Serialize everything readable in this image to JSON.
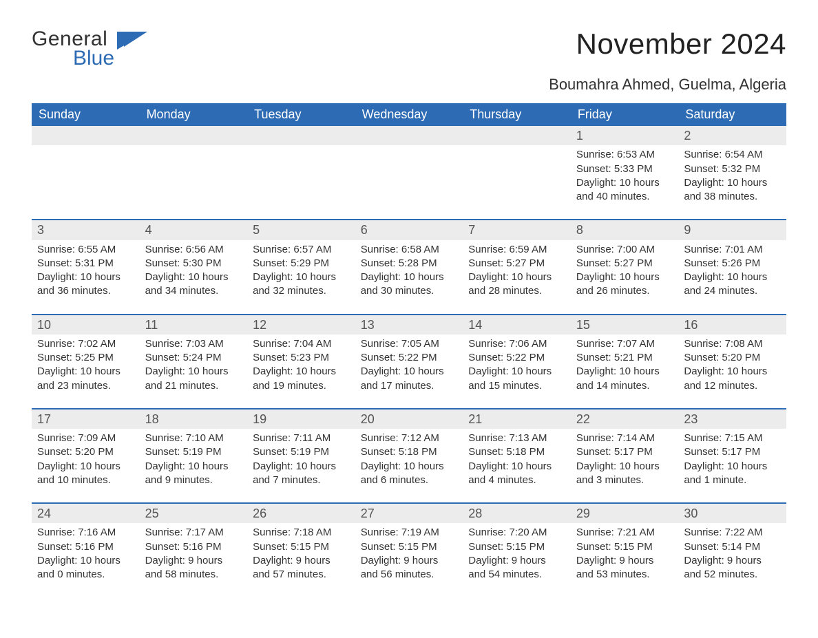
{
  "logo": {
    "word1": "General",
    "word2": "Blue",
    "color1": "#323232",
    "color2": "#2d6bb4"
  },
  "title": "November 2024",
  "location": "Boumahra Ahmed, Guelma, Algeria",
  "colors": {
    "header_bg": "#2d6bb4",
    "header_text": "#ffffff",
    "daynum_bg": "#ececec",
    "row_border": "#2d6bb4",
    "body_text": "#333333",
    "page_bg": "#ffffff"
  },
  "fonts": {
    "title_size": 42,
    "location_size": 22,
    "header_size": 18,
    "daynum_size": 18,
    "body_size": 15
  },
  "layout": {
    "columns": 7,
    "weeks": 5,
    "first_day_column": 5
  },
  "weekdays": [
    "Sunday",
    "Monday",
    "Tuesday",
    "Wednesday",
    "Thursday",
    "Friday",
    "Saturday"
  ],
  "weeks": [
    [
      null,
      null,
      null,
      null,
      null,
      {
        "day": "1",
        "sunrise": "Sunrise: 6:53 AM",
        "sunset": "Sunset: 5:33 PM",
        "daylight1": "Daylight: 10 hours",
        "daylight2": "and 40 minutes."
      },
      {
        "day": "2",
        "sunrise": "Sunrise: 6:54 AM",
        "sunset": "Sunset: 5:32 PM",
        "daylight1": "Daylight: 10 hours",
        "daylight2": "and 38 minutes."
      }
    ],
    [
      {
        "day": "3",
        "sunrise": "Sunrise: 6:55 AM",
        "sunset": "Sunset: 5:31 PM",
        "daylight1": "Daylight: 10 hours",
        "daylight2": "and 36 minutes."
      },
      {
        "day": "4",
        "sunrise": "Sunrise: 6:56 AM",
        "sunset": "Sunset: 5:30 PM",
        "daylight1": "Daylight: 10 hours",
        "daylight2": "and 34 minutes."
      },
      {
        "day": "5",
        "sunrise": "Sunrise: 6:57 AM",
        "sunset": "Sunset: 5:29 PM",
        "daylight1": "Daylight: 10 hours",
        "daylight2": "and 32 minutes."
      },
      {
        "day": "6",
        "sunrise": "Sunrise: 6:58 AM",
        "sunset": "Sunset: 5:28 PM",
        "daylight1": "Daylight: 10 hours",
        "daylight2": "and 30 minutes."
      },
      {
        "day": "7",
        "sunrise": "Sunrise: 6:59 AM",
        "sunset": "Sunset: 5:27 PM",
        "daylight1": "Daylight: 10 hours",
        "daylight2": "and 28 minutes."
      },
      {
        "day": "8",
        "sunrise": "Sunrise: 7:00 AM",
        "sunset": "Sunset: 5:27 PM",
        "daylight1": "Daylight: 10 hours",
        "daylight2": "and 26 minutes."
      },
      {
        "day": "9",
        "sunrise": "Sunrise: 7:01 AM",
        "sunset": "Sunset: 5:26 PM",
        "daylight1": "Daylight: 10 hours",
        "daylight2": "and 24 minutes."
      }
    ],
    [
      {
        "day": "10",
        "sunrise": "Sunrise: 7:02 AM",
        "sunset": "Sunset: 5:25 PM",
        "daylight1": "Daylight: 10 hours",
        "daylight2": "and 23 minutes."
      },
      {
        "day": "11",
        "sunrise": "Sunrise: 7:03 AM",
        "sunset": "Sunset: 5:24 PM",
        "daylight1": "Daylight: 10 hours",
        "daylight2": "and 21 minutes."
      },
      {
        "day": "12",
        "sunrise": "Sunrise: 7:04 AM",
        "sunset": "Sunset: 5:23 PM",
        "daylight1": "Daylight: 10 hours",
        "daylight2": "and 19 minutes."
      },
      {
        "day": "13",
        "sunrise": "Sunrise: 7:05 AM",
        "sunset": "Sunset: 5:22 PM",
        "daylight1": "Daylight: 10 hours",
        "daylight2": "and 17 minutes."
      },
      {
        "day": "14",
        "sunrise": "Sunrise: 7:06 AM",
        "sunset": "Sunset: 5:22 PM",
        "daylight1": "Daylight: 10 hours",
        "daylight2": "and 15 minutes."
      },
      {
        "day": "15",
        "sunrise": "Sunrise: 7:07 AM",
        "sunset": "Sunset: 5:21 PM",
        "daylight1": "Daylight: 10 hours",
        "daylight2": "and 14 minutes."
      },
      {
        "day": "16",
        "sunrise": "Sunrise: 7:08 AM",
        "sunset": "Sunset: 5:20 PM",
        "daylight1": "Daylight: 10 hours",
        "daylight2": "and 12 minutes."
      }
    ],
    [
      {
        "day": "17",
        "sunrise": "Sunrise: 7:09 AM",
        "sunset": "Sunset: 5:20 PM",
        "daylight1": "Daylight: 10 hours",
        "daylight2": "and 10 minutes."
      },
      {
        "day": "18",
        "sunrise": "Sunrise: 7:10 AM",
        "sunset": "Sunset: 5:19 PM",
        "daylight1": "Daylight: 10 hours",
        "daylight2": "and 9 minutes."
      },
      {
        "day": "19",
        "sunrise": "Sunrise: 7:11 AM",
        "sunset": "Sunset: 5:19 PM",
        "daylight1": "Daylight: 10 hours",
        "daylight2": "and 7 minutes."
      },
      {
        "day": "20",
        "sunrise": "Sunrise: 7:12 AM",
        "sunset": "Sunset: 5:18 PM",
        "daylight1": "Daylight: 10 hours",
        "daylight2": "and 6 minutes."
      },
      {
        "day": "21",
        "sunrise": "Sunrise: 7:13 AM",
        "sunset": "Sunset: 5:18 PM",
        "daylight1": "Daylight: 10 hours",
        "daylight2": "and 4 minutes."
      },
      {
        "day": "22",
        "sunrise": "Sunrise: 7:14 AM",
        "sunset": "Sunset: 5:17 PM",
        "daylight1": "Daylight: 10 hours",
        "daylight2": "and 3 minutes."
      },
      {
        "day": "23",
        "sunrise": "Sunrise: 7:15 AM",
        "sunset": "Sunset: 5:17 PM",
        "daylight1": "Daylight: 10 hours",
        "daylight2": "and 1 minute."
      }
    ],
    [
      {
        "day": "24",
        "sunrise": "Sunrise: 7:16 AM",
        "sunset": "Sunset: 5:16 PM",
        "daylight1": "Daylight: 10 hours",
        "daylight2": "and 0 minutes."
      },
      {
        "day": "25",
        "sunrise": "Sunrise: 7:17 AM",
        "sunset": "Sunset: 5:16 PM",
        "daylight1": "Daylight: 9 hours",
        "daylight2": "and 58 minutes."
      },
      {
        "day": "26",
        "sunrise": "Sunrise: 7:18 AM",
        "sunset": "Sunset: 5:15 PM",
        "daylight1": "Daylight: 9 hours",
        "daylight2": "and 57 minutes."
      },
      {
        "day": "27",
        "sunrise": "Sunrise: 7:19 AM",
        "sunset": "Sunset: 5:15 PM",
        "daylight1": "Daylight: 9 hours",
        "daylight2": "and 56 minutes."
      },
      {
        "day": "28",
        "sunrise": "Sunrise: 7:20 AM",
        "sunset": "Sunset: 5:15 PM",
        "daylight1": "Daylight: 9 hours",
        "daylight2": "and 54 minutes."
      },
      {
        "day": "29",
        "sunrise": "Sunrise: 7:21 AM",
        "sunset": "Sunset: 5:15 PM",
        "daylight1": "Daylight: 9 hours",
        "daylight2": "and 53 minutes."
      },
      {
        "day": "30",
        "sunrise": "Sunrise: 7:22 AM",
        "sunset": "Sunset: 5:14 PM",
        "daylight1": "Daylight: 9 hours",
        "daylight2": "and 52 minutes."
      }
    ]
  ]
}
